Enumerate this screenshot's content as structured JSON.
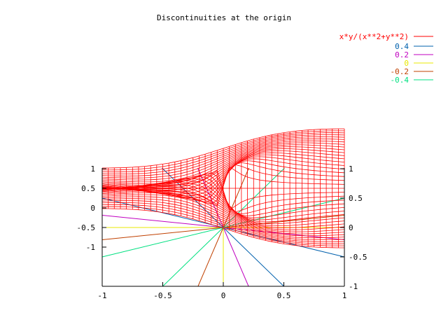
{
  "chart_data": {
    "type": "surface",
    "title": "Discontinuities at the origin",
    "function_label": "x*y/(x**2+y**2)",
    "x_range": [
      -1,
      1
    ],
    "y_range": [
      -1,
      1
    ],
    "z_range": [
      -1,
      1
    ],
    "x_ticks": [
      "-1",
      "-0.5",
      "0",
      "0.5",
      "1"
    ],
    "z_ticks_left": [
      "1",
      "0.5",
      "0",
      "-0.5",
      "-1"
    ],
    "z_ticks_right": [
      "1",
      "0.5",
      "0",
      "-0.5",
      "-1"
    ],
    "contour_levels": [
      {
        "label": "0.4",
        "level": 0.4,
        "color": "#0060ad"
      },
      {
        "label": "0.2",
        "level": 0.2,
        "color": "#c000c0"
      },
      {
        "label": "0",
        "level": 0.0,
        "color": "#e8e800"
      },
      {
        "label": "-0.2",
        "level": -0.2,
        "color": "#c04000"
      },
      {
        "label": "-0.4",
        "level": -0.4,
        "color": "#00e080"
      }
    ],
    "surface_color": "#ff0000",
    "grid": false,
    "legend_position": "top-right"
  }
}
